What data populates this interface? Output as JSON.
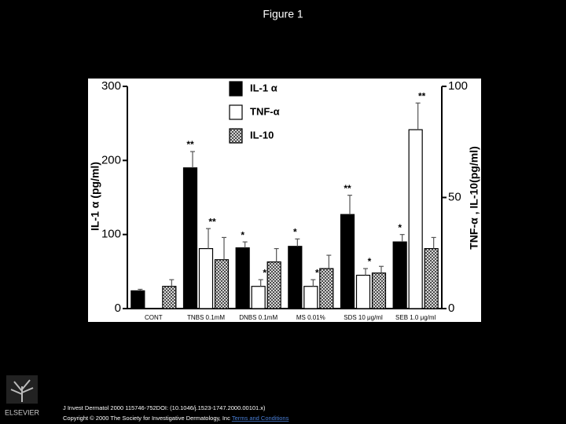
{
  "page_title": "Figure 1",
  "chart_data": {
    "type": "bar",
    "ylabel": "IL-1 α (pg/ml)",
    "y2label": "TNF-α , IL-10(pg/ml)",
    "categories": [
      "CONT",
      "TNBS 0.1mM",
      "DNBS 0.1mM",
      "MS 0.01%",
      "SDS 10 μg/ml",
      "SEB 1.0 μg/ml"
    ],
    "ylim": [
      0,
      300
    ],
    "yticks": [
      0,
      100,
      200,
      300
    ],
    "y2lim": [
      0,
      100
    ],
    "y2ticks": [
      0,
      50,
      100
    ],
    "legend": "top-center",
    "series": [
      {
        "name": "IL-1 α",
        "color": "#000000",
        "values": [
          24,
          190,
          82,
          84,
          127,
          90
        ],
        "errors": [
          2,
          22,
          8,
          10,
          26,
          10
        ],
        "significance": [
          null,
          "**",
          "*",
          "*",
          "**",
          "*"
        ]
      },
      {
        "name": "TNF-α",
        "color": "#ffffff",
        "axis": "y2",
        "values": [
          null,
          27,
          10,
          10,
          15,
          80.5
        ],
        "errors": [
          null,
          9,
          3,
          3,
          3,
          12
        ],
        "significance": [
          null,
          "**",
          "*",
          "*",
          "*",
          "**"
        ]
      },
      {
        "name": "IL-10",
        "color": "#888888",
        "hatch": true,
        "axis": "y2",
        "values": [
          10,
          22,
          21,
          18,
          16,
          27
        ],
        "errors": [
          3,
          10,
          6,
          6,
          3,
          5
        ]
      }
    ]
  },
  "footer": {
    "citation": "J Invest Dermatol 2000 115746-752DOI: (10.1046/j.1523-1747.2000.00101.x)",
    "copyright": "Copyright © 2000 The Society for Investigative Dermatology, Inc",
    "link": "Terms and Conditions",
    "publisher": "ELSEVIER"
  }
}
